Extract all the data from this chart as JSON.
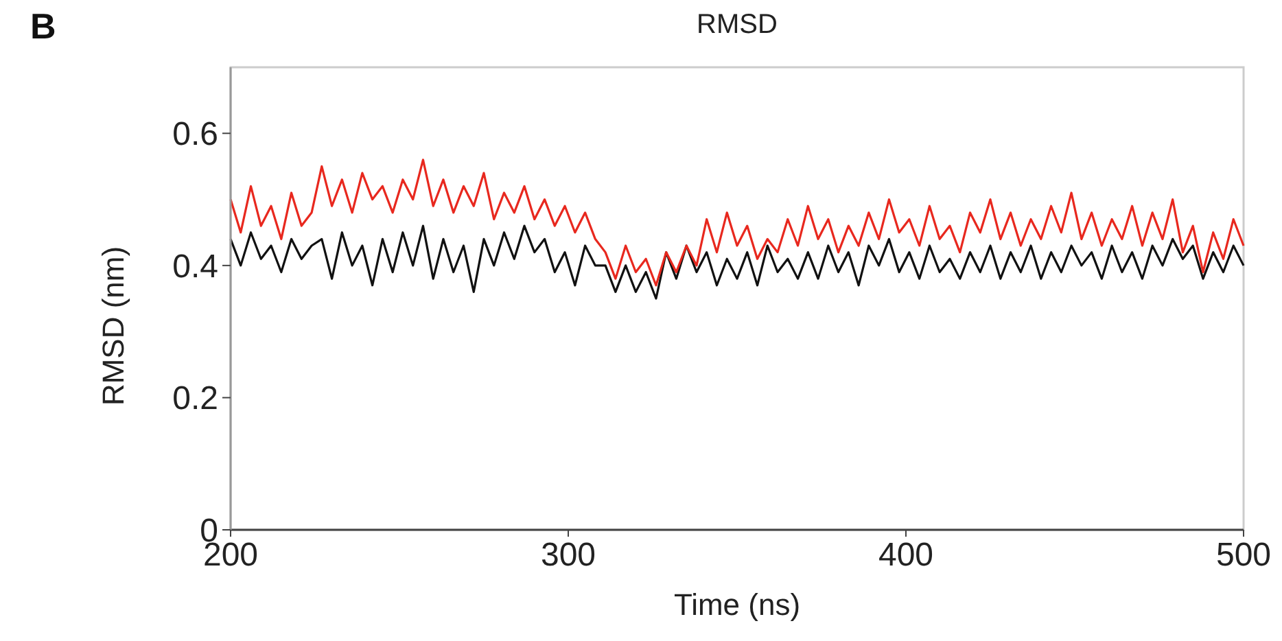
{
  "chart_data": {
    "type": "line",
    "title": "RMSD",
    "xlabel": "Time (ns)",
    "ylabel": "RMSD (nm)",
    "annotations": [
      "B"
    ],
    "x": [
      200,
      203,
      206,
      209,
      212,
      215,
      218,
      221,
      224,
      227,
      230,
      233,
      236,
      239,
      242,
      245,
      248,
      251,
      254,
      257,
      260,
      263,
      266,
      269,
      272,
      275,
      278,
      281,
      284,
      287,
      290,
      293,
      296,
      299,
      302,
      305,
      308,
      311,
      314,
      317,
      320,
      323,
      326,
      329,
      332,
      335,
      338,
      341,
      344,
      347,
      350,
      353,
      356,
      359,
      362,
      365,
      368,
      371,
      374,
      377,
      380,
      383,
      386,
      389,
      392,
      395,
      398,
      401,
      404,
      407,
      410,
      413,
      416,
      419,
      422,
      425,
      428,
      431,
      434,
      437,
      440,
      443,
      446,
      449,
      452,
      455,
      458,
      461,
      464,
      467,
      470,
      473,
      476,
      479,
      482,
      485,
      488,
      491,
      494,
      497,
      500
    ],
    "series": [
      {
        "color": "#111111",
        "values": [
          0.44,
          0.4,
          0.45,
          0.41,
          0.43,
          0.39,
          0.44,
          0.41,
          0.43,
          0.44,
          0.38,
          0.45,
          0.4,
          0.43,
          0.37,
          0.44,
          0.39,
          0.45,
          0.4,
          0.46,
          0.38,
          0.44,
          0.39,
          0.43,
          0.36,
          0.44,
          0.4,
          0.45,
          0.41,
          0.46,
          0.42,
          0.44,
          0.39,
          0.42,
          0.37,
          0.43,
          0.4,
          0.4,
          0.36,
          0.4,
          0.36,
          0.39,
          0.35,
          0.42,
          0.38,
          0.43,
          0.39,
          0.42,
          0.37,
          0.41,
          0.38,
          0.42,
          0.37,
          0.43,
          0.39,
          0.41,
          0.38,
          0.42,
          0.38,
          0.43,
          0.39,
          0.42,
          0.37,
          0.43,
          0.4,
          0.44,
          0.39,
          0.42,
          0.38,
          0.43,
          0.39,
          0.41,
          0.38,
          0.42,
          0.39,
          0.43,
          0.38,
          0.42,
          0.39,
          0.43,
          0.38,
          0.42,
          0.39,
          0.43,
          0.4,
          0.42,
          0.38,
          0.43,
          0.39,
          0.42,
          0.38,
          0.43,
          0.4,
          0.44,
          0.41,
          0.43,
          0.38,
          0.42,
          0.39,
          0.43,
          0.4
        ]
      },
      {
        "color": "#e8281e",
        "values": [
          0.5,
          0.45,
          0.52,
          0.46,
          0.49,
          0.44,
          0.51,
          0.46,
          0.48,
          0.55,
          0.49,
          0.53,
          0.48,
          0.54,
          0.5,
          0.52,
          0.48,
          0.53,
          0.5,
          0.56,
          0.49,
          0.53,
          0.48,
          0.52,
          0.49,
          0.54,
          0.47,
          0.51,
          0.48,
          0.52,
          0.47,
          0.5,
          0.46,
          0.49,
          0.45,
          0.48,
          0.44,
          0.42,
          0.38,
          0.43,
          0.39,
          0.41,
          0.37,
          0.42,
          0.39,
          0.43,
          0.4,
          0.47,
          0.42,
          0.48,
          0.43,
          0.46,
          0.41,
          0.44,
          0.42,
          0.47,
          0.43,
          0.49,
          0.44,
          0.47,
          0.42,
          0.46,
          0.43,
          0.48,
          0.44,
          0.5,
          0.45,
          0.47,
          0.43,
          0.49,
          0.44,
          0.46,
          0.42,
          0.48,
          0.45,
          0.5,
          0.44,
          0.48,
          0.43,
          0.47,
          0.44,
          0.49,
          0.45,
          0.51,
          0.44,
          0.48,
          0.43,
          0.47,
          0.44,
          0.49,
          0.43,
          0.48,
          0.44,
          0.5,
          0.42,
          0.46,
          0.39,
          0.45,
          0.41,
          0.47,
          0.43
        ]
      }
    ],
    "xlim": [
      200,
      500
    ],
    "xticks": [
      200,
      300,
      400,
      500
    ],
    "ylim": [
      0,
      0.7
    ],
    "yticks": [
      0,
      0.2,
      0.4,
      0.6
    ],
    "marker": "none",
    "line_style": "solid"
  }
}
